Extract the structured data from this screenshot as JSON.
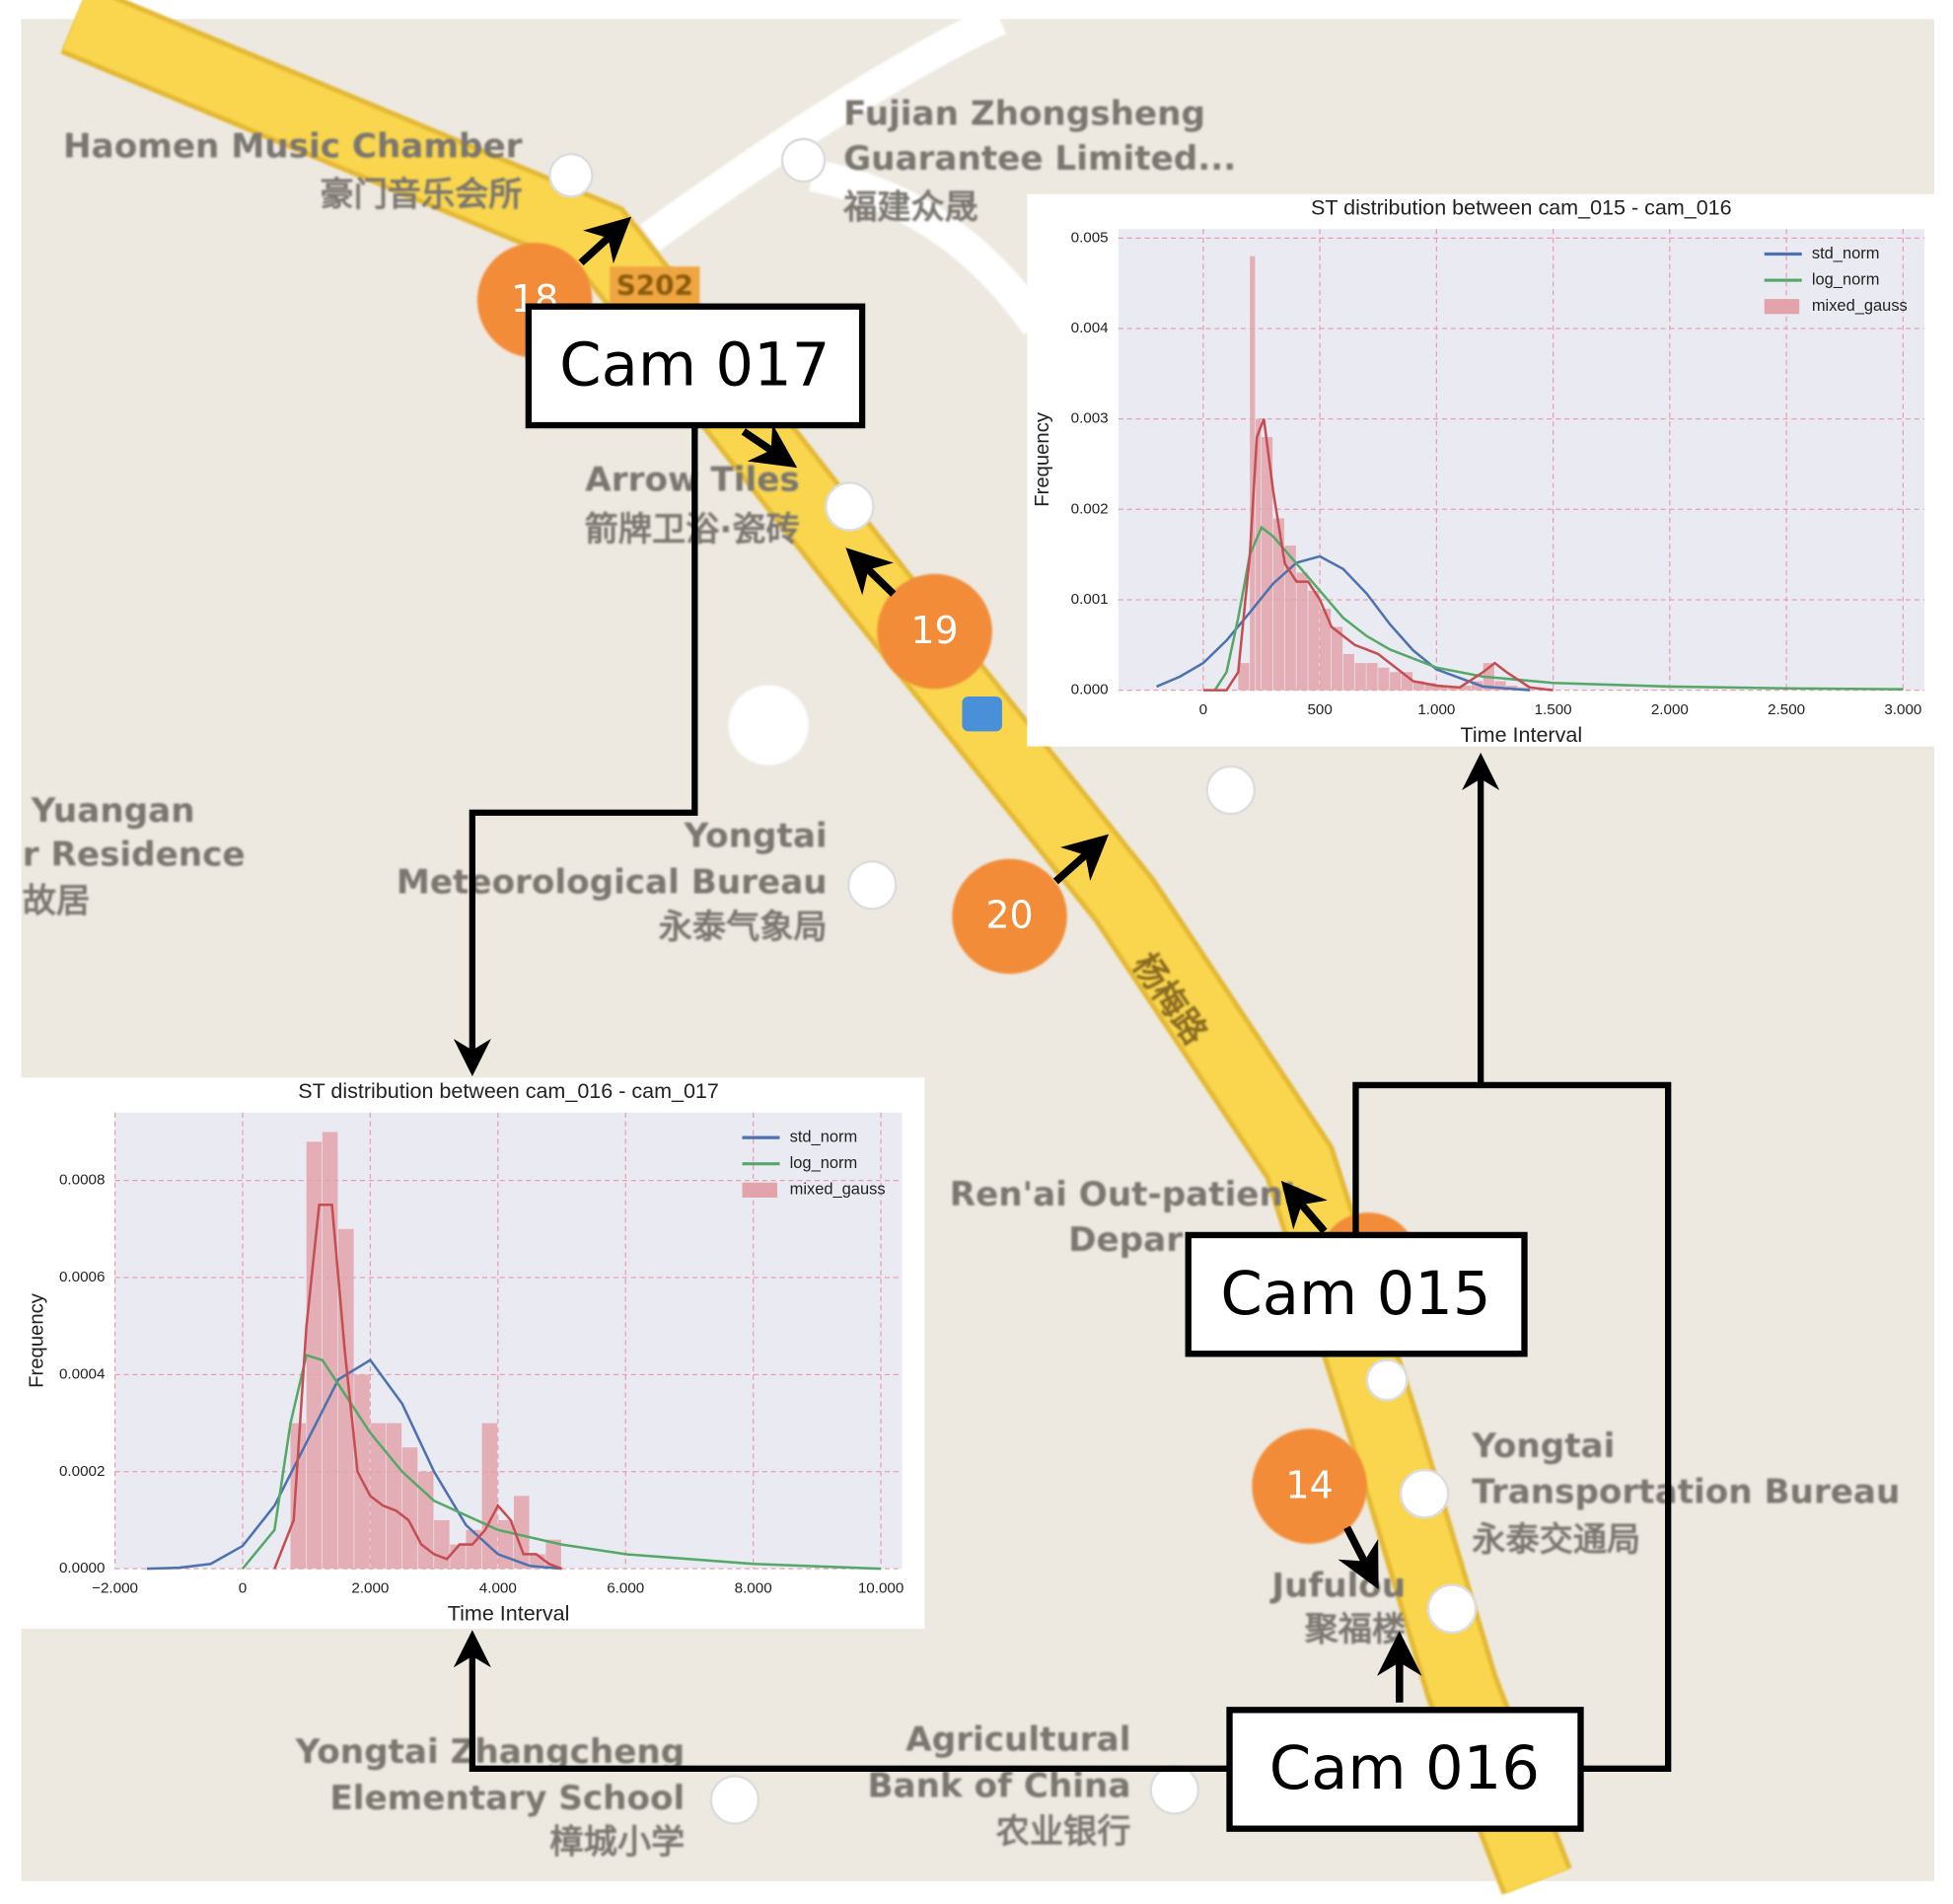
{
  "map_labels": [
    "S202",
    "杨梅路",
    "Haomen Music Chamber",
    "豪门音乐会所",
    "Fujian Zhongsheng",
    "Guarantee Limited...",
    "福建众晟",
    "Arrow Tiles",
    "箭牌卫浴·瓷砖",
    "Yuangan",
    "r Residence",
    "故居",
    "Yongtai",
    "Meteorological Bureau",
    "永泰气象局",
    "Ren'ai Out-patient",
    "Depar",
    "Yongtai",
    "Transportation Bureau",
    "永泰交通局",
    "Jufulou",
    "聚福楼",
    "Yongtai Zhangcheng",
    "Elementary School",
    "樟城小学",
    "Agricultural",
    "Bank of China",
    "农业银行"
  ],
  "markers": [
    "18",
    "19",
    "20",
    "14"
  ],
  "cameras": [
    "Cam 017",
    "Cam 015",
    "Cam 016"
  ],
  "chart_data": [
    {
      "type": "histogram",
      "title": "ST distribution between cam_015 - cam_016",
      "x_label": "Time Interval",
      "y_label": "Frequency",
      "xlim": [
        -364,
        3091
      ],
      "ylim": [
        0,
        0.0051
      ],
      "xticks": [
        0,
        500,
        {
          "value": 1000,
          "label": "1.000"
        },
        {
          "value": 1500,
          "label": "1.500"
        },
        {
          "value": 2000,
          "label": "2.000"
        },
        {
          "value": 2500,
          "label": "2.500"
        },
        {
          "value": 3000,
          "label": "3.000"
        }
      ],
      "yticks": [
        {
          "value": 0,
          "label": "0.000"
        },
        {
          "value": 0.001,
          "label": "0.001"
        },
        {
          "value": 0.002,
          "label": "0.002"
        },
        {
          "value": 0.003,
          "label": "0.003"
        },
        {
          "value": 0.004,
          "label": "0.004"
        },
        {
          "value": 0.005,
          "label": "0.005"
        }
      ],
      "grid": true,
      "legend": "upper right",
      "histogram": {
        "name": "mixed_gauss",
        "color": "#e3a3ab",
        "bins": [
          150,
          200,
          225,
          250,
          300,
          350,
          400,
          450,
          500,
          550,
          600,
          650,
          700,
          750,
          800,
          850,
          900,
          950,
          1000,
          1050,
          1100,
          1150,
          1200,
          1250,
          1300,
          1350,
          1400
        ],
        "counts": [
          0.0003,
          0.0048,
          0.003,
          0.0028,
          0.0019,
          0.0016,
          0.0013,
          0.0011,
          0.0009,
          0.0007,
          0.0004,
          0.0003,
          0.0003,
          0.00025,
          0.0002,
          0.0002,
          0.0001,
          8e-05,
          5e-05,
          3e-05,
          5e-05,
          0.0001,
          0.0003,
          0.0001,
          5e-05,
          3e-05
        ]
      },
      "series": [
        {
          "name": "std_norm",
          "color": "#4c72b0",
          "x": [
            -200,
            -100,
            0,
            100,
            200,
            300,
            400,
            500,
            600,
            700,
            800,
            900,
            1000,
            1200,
            1400
          ],
          "values": [
            4e-05,
            0.00015,
            0.0003,
            0.00055,
            0.00086,
            0.00118,
            0.00141,
            0.00148,
            0.00134,
            0.00107,
            0.00073,
            0.00044,
            0.00023,
            4e-05,
            0
          ]
        },
        {
          "name": "log_norm",
          "color": "#55a868",
          "x": [
            50,
            100,
            150,
            200,
            250,
            300,
            400,
            500,
            600,
            700,
            800,
            1000,
            1200,
            1500,
            2000,
            2500,
            3000
          ],
          "values": [
            0,
            0.0002,
            0.0008,
            0.0015,
            0.0018,
            0.0017,
            0.0014,
            0.0011,
            0.0008,
            0.0006,
            0.00045,
            0.00025,
            0.00015,
            8e-05,
            4e-05,
            2e-05,
            1e-05
          ]
        },
        {
          "color": "#c44e52",
          "x": [
            0,
            100,
            150,
            200,
            230,
            260,
            300,
            350,
            400,
            450,
            500,
            550,
            600,
            650,
            700,
            750,
            800,
            900,
            1000,
            1100,
            1200,
            1250,
            1300,
            1400,
            1500
          ],
          "values": [
            0,
            0,
            0.0002,
            0.0015,
            0.0028,
            0.003,
            0.0022,
            0.0014,
            0.0012,
            0.0012,
            0.001,
            0.0007,
            0.0006,
            0.0005,
            0.00045,
            0.0004,
            0.0003,
            0.0001,
            5e-05,
            3e-05,
            0.0002,
            0.0003,
            0.0002,
            3e-05,
            0
          ]
        }
      ]
    },
    {
      "type": "histogram",
      "title": "ST distribution between cam_016 - cam_017",
      "x_label": "Time Interval",
      "y_label": "Frequency",
      "xlim": [
        -2000,
        10333
      ],
      "ylim": [
        0,
        0.00094
      ],
      "xticks": [
        {
          "value": -2000,
          "label": "−2.000"
        },
        0,
        {
          "value": 2000,
          "label": "2.000"
        },
        {
          "value": 4000,
          "label": "4.000"
        },
        {
          "value": 6000,
          "label": "6.000"
        },
        {
          "value": 8000,
          "label": "8.000"
        },
        {
          "value": 10000,
          "label": "10.000"
        }
      ],
      "yticks": [
        {
          "value": 0,
          "label": "0.0000"
        },
        {
          "value": 0.0002,
          "label": "0.0002"
        },
        {
          "value": 0.0004,
          "label": "0.0004"
        },
        {
          "value": 0.0006,
          "label": "0.0006"
        },
        {
          "value": 0.0008,
          "label": "0.0008"
        }
      ],
      "grid": true,
      "legend": "upper right",
      "histogram": {
        "name": "mixed_gauss",
        "color": "#e3a3ab",
        "bins": [
          750,
          1000,
          1250,
          1500,
          1750,
          2000,
          2250,
          2500,
          2750,
          3000,
          3250,
          3500,
          3750,
          4000,
          4250,
          4500,
          4750,
          5000
        ],
        "counts": [
          0.0003,
          0.00088,
          0.0009,
          0.0007,
          0.0004,
          0.0003,
          0.0003,
          0.00025,
          0.0002,
          0.0001,
          5e-05,
          8e-05,
          0.0003,
          0.0001,
          0.00015,
          3e-05,
          6e-05
        ]
      },
      "series": [
        {
          "name": "std_norm",
          "color": "#4c72b0",
          "x": [
            -1500,
            -1000,
            -500,
            0,
            500,
            1000,
            1500,
            2000,
            2500,
            3000,
            3500,
            4000,
            4500,
            5000
          ],
          "values": [
            0,
            2e-06,
            1e-05,
            4.7e-05,
            0.00013,
            0.00026,
            0.00039,
            0.00043,
            0.00034,
            0.0002,
            9e-05,
            3e-05,
            6e-06,
            0
          ]
        },
        {
          "name": "log_norm",
          "color": "#55a868",
          "x": [
            0,
            500,
            750,
            1000,
            1250,
            1500,
            2000,
            2500,
            3000,
            4000,
            5000,
            6000,
            8000,
            10000
          ],
          "values": [
            0,
            8e-05,
            0.0003,
            0.00044,
            0.00043,
            0.00038,
            0.00028,
            0.0002,
            0.00014,
            8e-05,
            5e-05,
            3e-05,
            1e-05,
            0
          ]
        },
        {
          "color": "#c44e52",
          "x": [
            500,
            800,
            1000,
            1200,
            1400,
            1600,
            1800,
            2000,
            2200,
            2400,
            2600,
            2800,
            3000,
            3200,
            3400,
            3600,
            3800,
            4000,
            4200,
            4400,
            4600,
            4800,
            5000
          ],
          "values": [
            0,
            0.0001,
            0.0005,
            0.00075,
            0.00075,
            0.00045,
            0.0002,
            0.00015,
            0.00013,
            0.00012,
            0.0001,
            5e-05,
            3e-05,
            2e-05,
            5e-05,
            5e-05,
            8e-05,
            0.00013,
            0.0001,
            3e-05,
            3e-05,
            1e-05,
            0
          ]
        }
      ]
    }
  ]
}
